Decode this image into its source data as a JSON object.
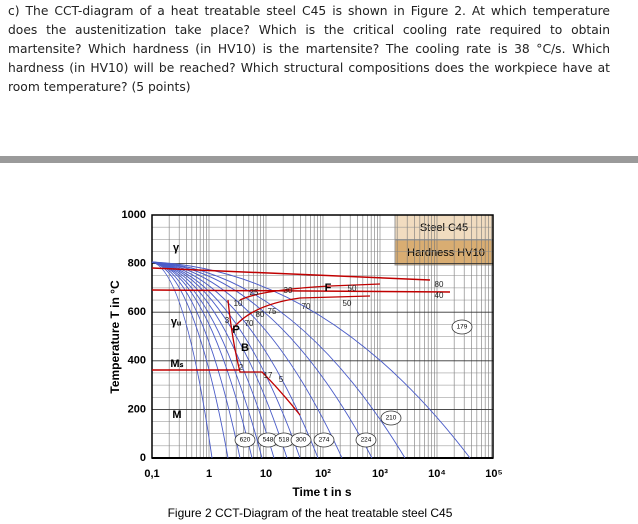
{
  "question": "c) The CCT-diagram of a heat treatable steel C45 is shown in Figure 2. At which temperature does the austenitization take place? Which is the critical cooling rate required to obtain martensite? Which hardness (in HV10) is the martensite? The cooling rate is 38 °C/s. Which hardness (in HV10) will be reached? Which structural compositions does the workpiece have at room temperature? (5 points)",
  "figure": {
    "steel": "Steel C45",
    "hardness_title": "Hardness HV10",
    "y_axis_label": "Temperature T in °C",
    "x_axis_label": "Time t in s",
    "y_tick_labels": [
      "1000",
      "800",
      "600",
      "400",
      "200",
      "0"
    ],
    "x_tick_labels": [
      "0,1",
      "1",
      "10",
      "10²",
      "10³",
      "10⁴",
      "10⁵"
    ],
    "phase_labels": [
      "γ",
      "γᵤ",
      "Mₛ",
      "M",
      "F",
      "P",
      "B"
    ],
    "percent_labels": [
      "25",
      "30",
      "50",
      "50",
      "10",
      "80",
      "75",
      "70",
      "70",
      "3",
      "2",
      "17",
      "5",
      "80",
      "40"
    ],
    "hardness_values": [
      "620",
      "548",
      "518",
      "300",
      "274",
      "224",
      "210",
      "179"
    ],
    "caption": "Figure 2 CCT-Diagram of the heat treatable steel C45"
  }
}
